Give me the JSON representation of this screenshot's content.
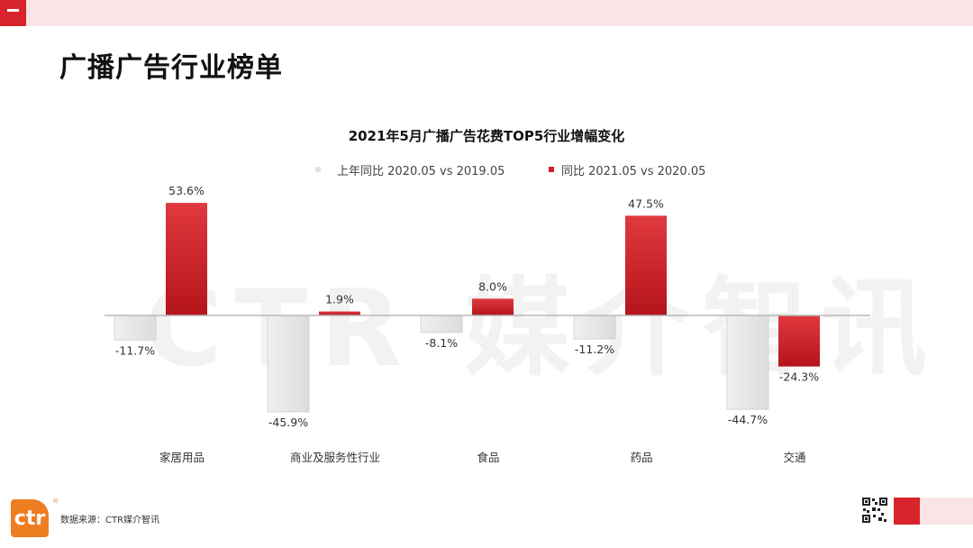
{
  "page": {
    "title": "广播广告行业榜单",
    "watermark": "CTR 媒介智讯",
    "source": "数据来源：CTR媒介智讯",
    "logo_text": "ctr",
    "logo_mark": "®",
    "menu_icon": "hamburger-menu-icon"
  },
  "colors": {
    "accent": "#d9232a",
    "series_prev": "#e2e2e2",
    "series_curr": "#d42027",
    "topbar": "#fbe4e6"
  },
  "chart_data": {
    "type": "bar",
    "title": "2021年5月广播广告花费TOP5行业增幅变化",
    "categories": [
      "家居用品",
      "商业及服务性行业",
      "食品",
      "药品",
      "交通"
    ],
    "series": [
      {
        "name": "上年同比 2020.05 vs 2019.05",
        "values": [
          -11.7,
          -45.9,
          -8.1,
          -11.2,
          -44.7
        ],
        "labels": [
          "-11.7%",
          "-45.9%",
          "-8.1%",
          "-11.2%",
          "-44.7%"
        ],
        "color": "#e2e2e2"
      },
      {
        "name": "同比 2021.05 vs 2020.05",
        "values": [
          53.6,
          1.9,
          8.0,
          47.5,
          -24.3
        ],
        "labels": [
          "53.6%",
          "1.9%",
          "8.0%",
          "47.5%",
          "-24.3%"
        ],
        "color": "#d42027"
      }
    ],
    "legend": "top",
    "grid": false
  }
}
